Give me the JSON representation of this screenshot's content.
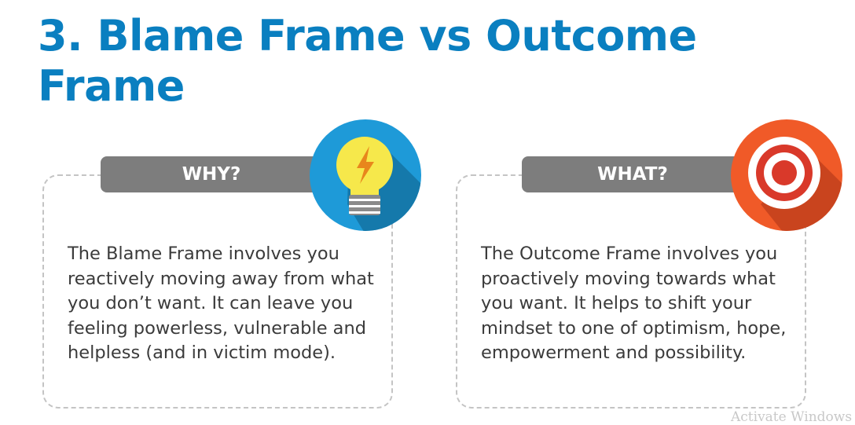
{
  "title": "3. Blame Frame vs Outcome Frame",
  "cards": [
    {
      "heading": "WHY?",
      "icon": "lightbulb-icon",
      "text": "The Blame Frame involves you reactively moving away from what you don’t want. It can leave you feeling powerless, vulnerable and helpless (and in victim mode)."
    },
    {
      "heading": "WHAT?",
      "icon": "target-icon",
      "text": "The Outcome Frame involves you proactively moving towards what you want. It helps to shift your mindset to one of optimism, hope, empowerment and possibility."
    }
  ],
  "watermark": "Activate Windows",
  "colors": {
    "title": "#0a7fc0",
    "pill": "#7d7d7d",
    "bulb_circle": "#1e9ad8",
    "bulb": "#f6e84b",
    "target_circle": "#f05a28",
    "target_ring": "#ffffff"
  }
}
